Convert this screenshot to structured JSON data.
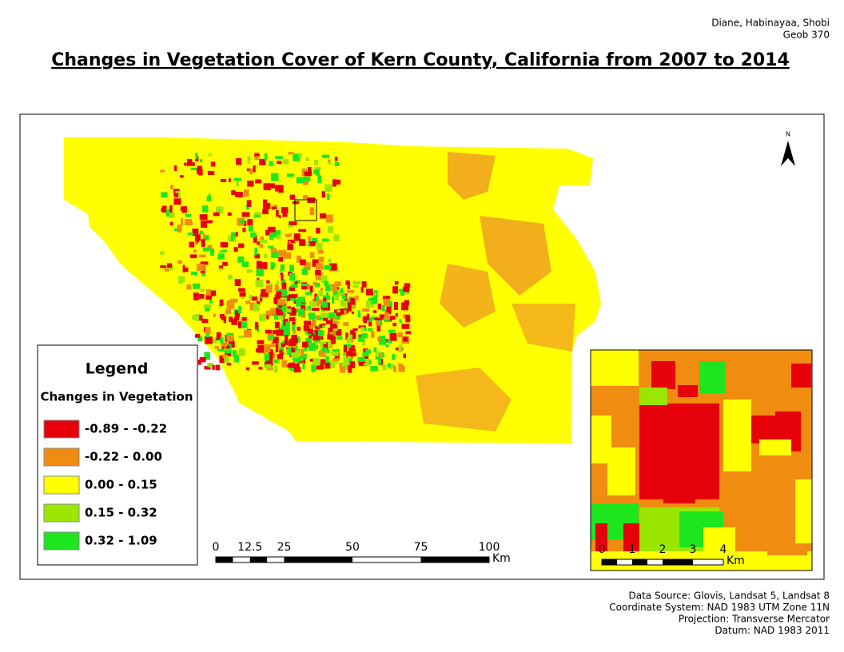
{
  "header": {
    "authors": "Diane, Habinayaa, Shobi",
    "course": "Geob 370",
    "title": "Changes in Vegetation Cover of Kern County, California from 2007 to 2014"
  },
  "north_arrow": {
    "label": "N"
  },
  "legend": {
    "title": "Legend",
    "subtitle": "Changes in Vegetation",
    "items": [
      {
        "label": "-0.89 - -0.22",
        "color": "#e6000a"
      },
      {
        "label": "-0.22 - 0.00",
        "color": "#f08c10"
      },
      {
        "label": "0.00 - 0.15",
        "color": "#ffff00"
      },
      {
        "label": "0.15 - 0.32",
        "color": "#9be600"
      },
      {
        "label": "0.32 - 1.09",
        "color": "#1ee61e"
      }
    ]
  },
  "scale_bar": {
    "ticks": [
      0,
      12.5,
      25,
      50,
      75,
      100
    ],
    "unit": "Km"
  },
  "inset_scale_bar": {
    "ticks": [
      0,
      1,
      2,
      3,
      4
    ],
    "unit": "Km"
  },
  "footer": {
    "lines": [
      "Data Source: Glovis, Landsat 5, Landsat 8",
      "Coordinate System: NAD 1983 UTM Zone 11N",
      "Projection: Transverse Mercator",
      "Datum: NAD 1983 2011"
    ]
  }
}
